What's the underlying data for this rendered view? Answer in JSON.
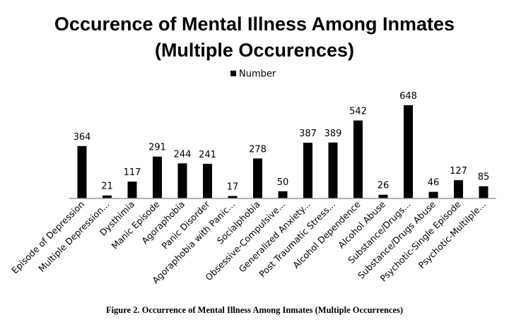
{
  "chart_data": {
    "type": "bar",
    "title": "Occurence of Mental Illness Among Inmates (Multiple Occurences)",
    "title_lines": [
      "Occurence of Mental Illness Among Inmates",
      "(Multiple Occurences)"
    ],
    "caption": "Figure 2. Occurrence of Mental Illness Among Inmates (Multiple Occurrences)",
    "legend": {
      "position": "top",
      "entries": [
        "Number"
      ]
    },
    "series": [
      {
        "name": "Number",
        "color": "#000000",
        "values": [
          364,
          21,
          117,
          291,
          244,
          241,
          17,
          278,
          50,
          387,
          389,
          542,
          26,
          648,
          46,
          127,
          85
        ]
      }
    ],
    "categories": [
      "Episode of Depression",
      "Multiple Depression...",
      "Dysthimia",
      "Manic Episode",
      "Agoraphobia",
      "Panic Disorder",
      "Agoraphobia with Panic...",
      "Socialphobia",
      "Obsessive-Compulsive...",
      "Generalized Anxiety...",
      "Post Traumatic Stress...",
      "Alcohol Dependence",
      "Alcohol Abuse",
      "Substance/Drugs...",
      "Substance/Drugs Abuse",
      "Psychotic-Single Episode",
      "Psychotic-Multilple..."
    ],
    "ylim": [
      0,
      700
    ],
    "grid": false,
    "data_labels": true
  }
}
